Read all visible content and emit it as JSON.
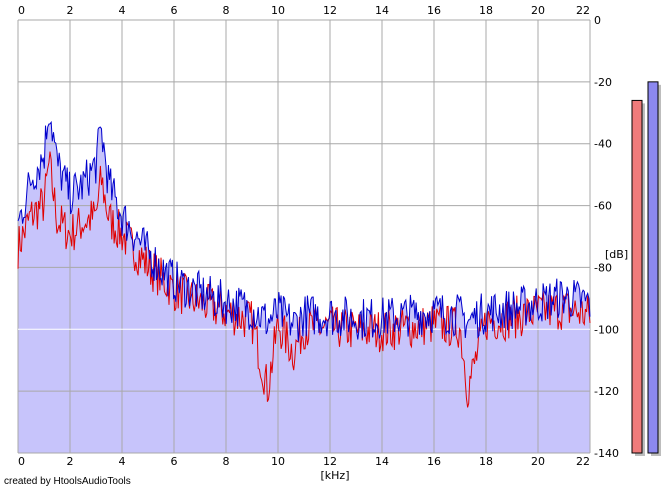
{
  "chart_data": {
    "type": "area",
    "xlabel": "[kHz]",
    "ylabel": "[dB]",
    "xlim": [
      0,
      22
    ],
    "ylim": [
      -140,
      0
    ],
    "x_ticks": [
      "0",
      "2",
      "4",
      "6",
      "8",
      "10",
      "12",
      "14",
      "16",
      "18",
      "20",
      "22"
    ],
    "y_ticks": [
      "0",
      "-20",
      "-40",
      "-60",
      "-80",
      "-100",
      "-120",
      "-140"
    ],
    "grid": true,
    "colors": {
      "fill": "#c7c4fb",
      "grid": "#a8a8a8",
      "red": "#e00000",
      "blue": "#0000cc"
    },
    "series": [
      {
        "color": "#e00000",
        "x": [
          0,
          0.5,
          1,
          1.2,
          1.5,
          2,
          2.5,
          3,
          3.2,
          3.5,
          4,
          4.5,
          5,
          5.5,
          6,
          6.5,
          7,
          8,
          9,
          9.6,
          10,
          10.6,
          11,
          12,
          13,
          14,
          15,
          16,
          17,
          17.3,
          18,
          19,
          20,
          21,
          21.5,
          22
        ],
        "values": [
          -72,
          -62,
          -58,
          -45,
          -63,
          -68,
          -64,
          -62,
          -50,
          -63,
          -68,
          -73,
          -78,
          -82,
          -86,
          -88,
          -90,
          -93,
          -96,
          -118,
          -97,
          -106,
          -98,
          -98,
          -99,
          -99,
          -98,
          -97,
          -98,
          -118,
          -96,
          -95,
          -93,
          -92,
          -93,
          -94
        ]
      },
      {
        "color": "#0000cc",
        "x": [
          0,
          0.5,
          1,
          1.2,
          1.5,
          2,
          2.5,
          3,
          3.2,
          3.5,
          4,
          4.5,
          5,
          5.5,
          6,
          6.5,
          7,
          8,
          9,
          9.6,
          10,
          10.6,
          11,
          12,
          13,
          14,
          15,
          16,
          17,
          17.3,
          18,
          19,
          20,
          21,
          21.5,
          22
        ],
        "values": [
          -65,
          -50,
          -42,
          -26,
          -45,
          -55,
          -52,
          -45,
          -34,
          -52,
          -62,
          -68,
          -74,
          -79,
          -83,
          -85,
          -87,
          -90,
          -92,
          -96,
          -93,
          -97,
          -94,
          -94,
          -95,
          -95,
          -94,
          -93,
          -94,
          -96,
          -93,
          -92,
          -90,
          -88,
          -89,
          -90
        ]
      }
    ],
    "level_meters": [
      {
        "color": "#ef7b7b",
        "level_db": -26
      },
      {
        "color": "#8c88f0",
        "level_db": -20
      }
    ]
  },
  "footer": {
    "credit": "created by HtoolsAudioTools"
  }
}
